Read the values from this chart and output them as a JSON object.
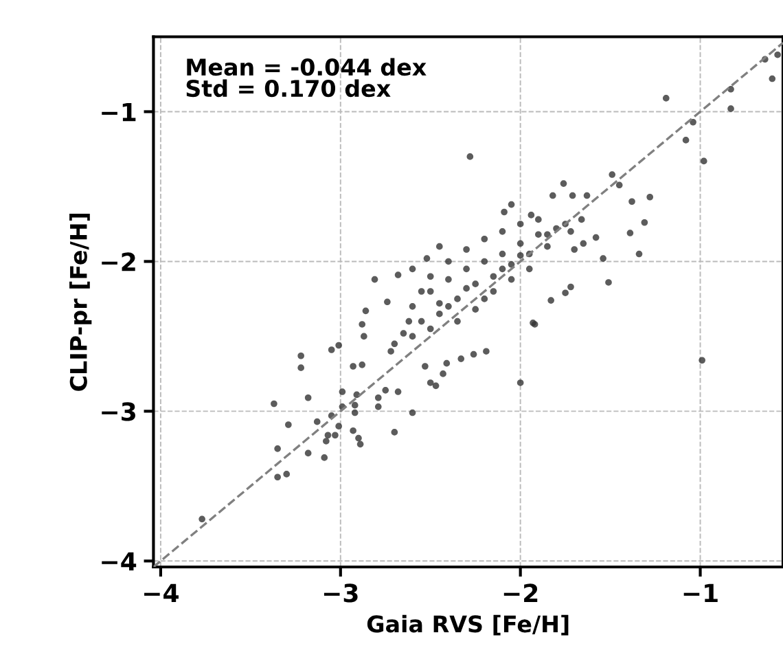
{
  "chart_data": [
    {
      "type": "scatter",
      "xlabel": "Gaia RVS [Fe/H]",
      "ylabel": "CLIP-pr [Fe/H]",
      "annotations": [
        "Mean = -0.044 dex",
        "Std = 0.170 dex"
      ],
      "xlim": [
        -4.04,
        -0.54
      ],
      "ylim": [
        -4.04,
        -0.5
      ],
      "xticks": [
        -4,
        -3,
        -2,
        -1
      ],
      "yticks": [
        -4,
        -3,
        -2,
        -1
      ],
      "grid": true,
      "marker": "circle",
      "series": [
        {
          "color": "#333333",
          "x": [
            -1.19,
            -0.6,
            -0.83,
            -1.04,
            -1.08,
            -0.98,
            -0.83,
            -0.64,
            -0.57,
            -2.28,
            -1.49,
            -1.45,
            -1.76,
            -1.28,
            -1.38,
            -1.31,
            -1.39,
            -1.34,
            -1.51,
            -1.54,
            -1.63,
            -1.71,
            -1.82,
            -2.05,
            -2.09,
            -1.94,
            -1.58,
            -1.66,
            -1.72,
            -1.93,
            -2.81,
            -2.86,
            -2.74,
            -2.68,
            -2.6,
            -2.52,
            -2.45,
            -1.72,
            -1.75,
            -1.83,
            -2.88,
            -2.87,
            -1.92,
            -2.19,
            -2.26,
            -2.0,
            -0.99,
            -3.22,
            -3.22,
            -3.05,
            -3.01,
            -2.93,
            -2.88,
            -3.18,
            -3.37,
            -3.29,
            -3.13,
            -2.99,
            -2.99,
            -3.05,
            -3.01,
            -3.07,
            -3.03,
            -3.08,
            -3.09,
            -3.18,
            -3.35,
            -3.35,
            -3.3,
            -3.77,
            -2.93,
            -2.9,
            -2.89,
            -2.7,
            -2.6,
            -2.92,
            -2.92,
            -2.91,
            -2.79,
            -2.79,
            -2.75,
            -2.68,
            -2.5,
            -2.47,
            -2.41,
            -2.33,
            -2.43,
            -2.53,
            -2.2,
            -2.1,
            -2.0,
            -1.9,
            -1.8,
            -2.3,
            -2.4,
            -2.5,
            -2.6,
            -2.15,
            -2.05,
            -1.95,
            -1.85,
            -2.25,
            -2.35,
            -2.45,
            -2.55,
            -2.65,
            -2.7,
            -2.2,
            -2.1,
            -2.0,
            -1.9,
            -2.3,
            -2.4,
            -2.5,
            -2.15,
            -2.05,
            -1.95,
            -2.25,
            -2.35,
            -2.6,
            -2.55,
            -2.45,
            -1.85,
            -1.75,
            -2.0,
            -2.1,
            -2.2,
            -2.3,
            -2.4,
            -2.5,
            -2.62,
            -2.72,
            -1.7,
            -1.65
          ],
          "values": [
            -0.91,
            -0.78,
            -0.98,
            -1.07,
            -1.19,
            -1.33,
            -0.85,
            -0.65,
            -0.62,
            -1.3,
            -1.42,
            -1.49,
            -1.48,
            -1.57,
            -1.6,
            -1.74,
            -1.81,
            -1.95,
            -2.14,
            -1.98,
            -1.56,
            -1.56,
            -1.56,
            -1.62,
            -1.67,
            -1.69,
            -1.84,
            -1.72,
            -1.8,
            -2.41,
            -2.12,
            -2.33,
            -2.27,
            -2.09,
            -2.05,
            -1.98,
            -1.9,
            -2.17,
            -2.21,
            -2.26,
            -2.42,
            -2.5,
            -2.42,
            -2.6,
            -2.62,
            -2.81,
            -2.66,
            -2.63,
            -2.71,
            -2.59,
            -2.56,
            -2.7,
            -2.69,
            -2.91,
            -2.95,
            -3.09,
            -3.07,
            -2.87,
            -2.97,
            -3.03,
            -3.1,
            -3.16,
            -3.16,
            -3.2,
            -3.31,
            -3.28,
            -3.25,
            -3.44,
            -3.42,
            -3.72,
            -3.13,
            -3.18,
            -3.22,
            -3.14,
            -3.01,
            -3.01,
            -2.96,
            -2.89,
            -2.97,
            -2.91,
            -2.86,
            -2.87,
            -2.81,
            -2.83,
            -2.68,
            -2.65,
            -2.75,
            -2.7,
            -2.0,
            -1.95,
            -1.88,
            -1.82,
            -1.78,
            -2.05,
            -2.12,
            -2.2,
            -2.3,
            -2.1,
            -2.02,
            -1.95,
            -1.9,
            -2.15,
            -2.25,
            -2.35,
            -2.4,
            -2.48,
            -2.55,
            -1.85,
            -1.8,
            -1.75,
            -1.72,
            -1.92,
            -2.0,
            -2.1,
            -2.2,
            -2.12,
            -2.05,
            -2.32,
            -2.4,
            -2.5,
            -2.2,
            -2.28,
            -1.82,
            -1.75,
            -1.96,
            -2.05,
            -2.25,
            -2.18,
            -2.3,
            -2.45,
            -2.4,
            -2.6,
            -1.92,
            -1.88
          ]
        },
        {
          "type": "line",
          "color": "#808080",
          "line_style": "dashed",
          "marker": "none",
          "x": [
            -4.04,
            -0.54
          ],
          "values": [
            -4.04,
            -0.54
          ]
        }
      ]
    }
  ]
}
